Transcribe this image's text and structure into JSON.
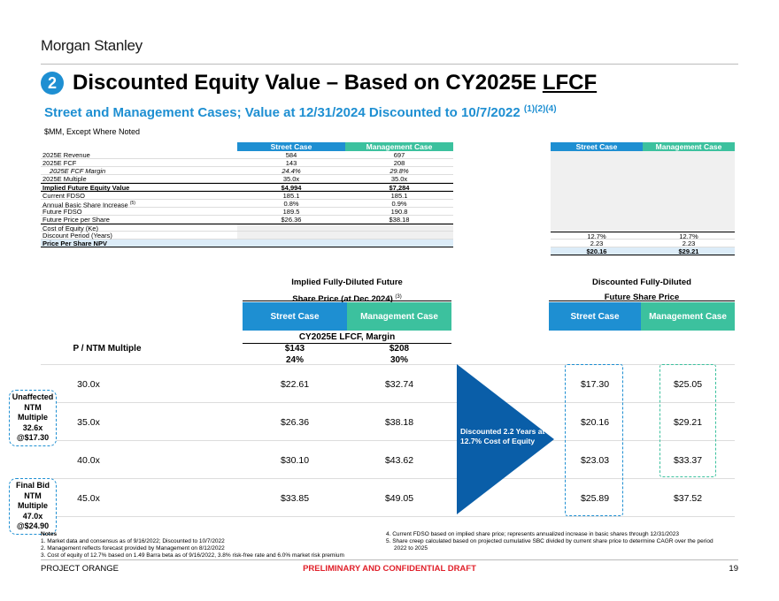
{
  "header": {
    "logo": "Morgan Stanley",
    "badge": "2",
    "title_main": "Discounted Equity Value – Based on CY2025E ",
    "title_underlined": "LFCF",
    "subtitle": "Street and Management Cases; Value at 12/31/2024 Discounted to 10/7/2022 ",
    "subtitle_notes": "(1)(2)(4)",
    "units": "$MM, Except Where Noted"
  },
  "detail_table": {
    "col_street": "Street Case",
    "col_mgmt": "Management Case",
    "rows": [
      {
        "label": "2025E Revenue",
        "street": "584",
        "mgmt": "697"
      },
      {
        "label": "2025E FCF",
        "street": "143",
        "mgmt": "208"
      },
      {
        "label": "2025E FCF Margin",
        "street": "24.4%",
        "mgmt": "29.8%"
      },
      {
        "label": "2025E Multiple",
        "street": "35.0x",
        "mgmt": "35.0x"
      },
      {
        "label": "Implied Future Equity Value",
        "street": "$4,994",
        "mgmt": "$7,284"
      },
      {
        "label": "Current FDSO",
        "street": "185.1",
        "mgmt": "185.1"
      },
      {
        "label": "Annual Basic Share Increase",
        "label_note": "(5)",
        "street": "0.8%",
        "mgmt": "0.9%"
      },
      {
        "label": "Future FDSO",
        "street": "189.5",
        "mgmt": "190.8"
      },
      {
        "label": "Future Price per Share",
        "street": "$26.36",
        "mgmt": "$38.18"
      },
      {
        "label": "Cost of Equity (Ke)"
      },
      {
        "label": "Discount Period (Years)"
      },
      {
        "label": "Price Per Share NPV"
      }
    ]
  },
  "discount_table": {
    "col_street": "Street Case",
    "col_mgmt": "Management Case",
    "rows": [
      {
        "street": "12.7%",
        "mgmt": "12.7%"
      },
      {
        "street": "2.23",
        "mgmt": "2.23"
      },
      {
        "street": "$20.16",
        "mgmt": "$29.21"
      }
    ]
  },
  "sensitivity": {
    "implied_header_line1": "Implied Fully-Diluted Future",
    "implied_header_line2": "Share Price (at Dec 2024) ",
    "implied_header_note": "(3)",
    "discounted_header_line1": "Discounted Fully-Diluted",
    "discounted_header_line2": "Future Share Price",
    "col_street": "Street Case",
    "col_mgmt": "Management Case",
    "cy_header": "CY2025E LFCF, Margin",
    "multiple_label": "P / NTM Multiple",
    "street_lfcf": "$143",
    "mgmt_lfcf": "$208",
    "street_margin": "24%",
    "mgmt_margin": "30%",
    "arrow_text": "Discounted 2.2 Years at 12.7% Cost of Equity",
    "rows": [
      {
        "multiple": "30.0x",
        "street_future": "$22.61",
        "mgmt_future": "$32.74",
        "street_disc": "$17.30",
        "mgmt_disc": "$25.05"
      },
      {
        "multiple": "35.0x",
        "street_future": "$26.36",
        "mgmt_future": "$38.18",
        "street_disc": "$20.16",
        "mgmt_disc": "$29.21"
      },
      {
        "multiple": "40.0x",
        "street_future": "$30.10",
        "mgmt_future": "$43.62",
        "street_disc": "$23.03",
        "mgmt_disc": "$33.37"
      },
      {
        "multiple": "45.0x",
        "street_future": "$33.85",
        "mgmt_future": "$49.05",
        "street_disc": "$25.89",
        "mgmt_disc": "$37.52"
      }
    ],
    "callout_unaffected": [
      "Unaffected",
      "NTM",
      "Multiple",
      "32.6x",
      "@$17.30"
    ],
    "callout_finalbid": [
      "Final Bid",
      "NTM",
      "Multiple",
      "47.0x",
      "@$24.90"
    ]
  },
  "notes": {
    "heading": "Notes",
    "left": [
      "1.  Market data and consensus as of 9/16/2022; Discounted to 10/7/2022",
      "2.  Management reflects forecast provided by Management on 8/12/2022",
      "3.  Cost of equity of 12.7% based on 1.49 Barra beta as of 9/16/2022, 3.8% risk-free rate and 6.0% market risk premium"
    ],
    "right": [
      "4.  Current FDSO based on implied share price; represents annualized increase in basic shares through 12/31/2023",
      "5.  Share creep calculated based on projected cumulative SBC divided by current share price to determine CAGR over the period",
      "     2022 to 2025"
    ]
  },
  "footer": {
    "project": "PROJECT ORANGE",
    "confidential": "PRELIMINARY AND CONFIDENTIAL DRAFT",
    "page": "19"
  }
}
